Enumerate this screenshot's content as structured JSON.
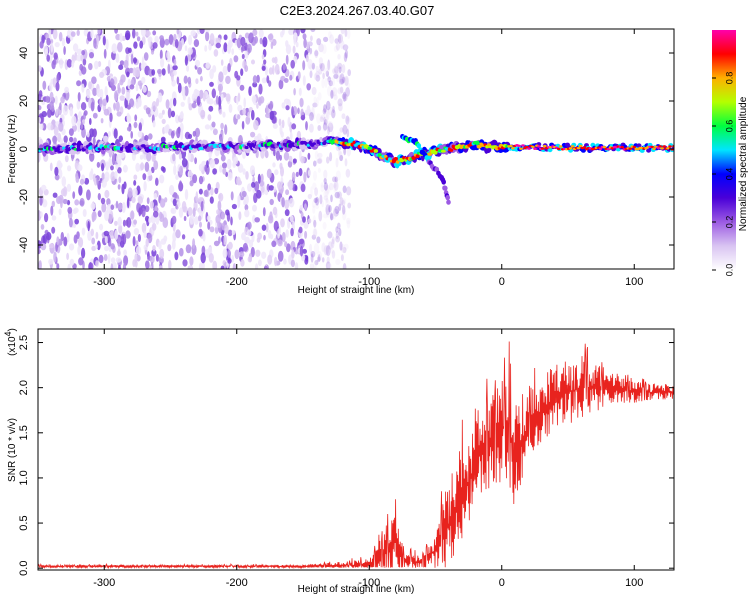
{
  "title": "C2E3.2024.267.03.40.G07",
  "chart_data": [
    {
      "type": "heatmap",
      "xlabel": "Height of straight line (km)",
      "ylabel": "Frequency (Hz)",
      "xlim": [
        -350,
        130
      ],
      "ylim": [
        -50,
        50
      ],
      "x_ticks": [
        "-300",
        "-200",
        "-100",
        "0",
        "100"
      ],
      "x_tick_values": [
        -300,
        -200,
        -100,
        0,
        100
      ],
      "y_ticks": [
        "-40",
        "-20",
        "0",
        "20",
        "40"
      ],
      "y_tick_values": [
        -40,
        -20,
        0,
        20,
        40
      ],
      "ridge": {
        "description_values_in_data_units": true,
        "points": [
          {
            "x": -350,
            "y": 0
          },
          {
            "x": -300,
            "y": 0.5
          },
          {
            "x": -250,
            "y": 0.8
          },
          {
            "x": -200,
            "y": 1
          },
          {
            "x": -150,
            "y": 2
          },
          {
            "x": -130,
            "y": 3
          },
          {
            "x": -110,
            "y": 2
          },
          {
            "x": -100,
            "y": 0
          },
          {
            "x": -90,
            "y": -3
          },
          {
            "x": -80,
            "y": -5
          },
          {
            "x": -70,
            "y": -4
          },
          {
            "x": -60,
            "y": -2
          },
          {
            "x": -50,
            "y": -1
          },
          {
            "x": -40,
            "y": 0
          },
          {
            "x": -30,
            "y": 1
          },
          {
            "x": -20,
            "y": 2
          },
          {
            "x": -10,
            "y": 1
          },
          {
            "x": 0,
            "y": 1
          },
          {
            "x": 50,
            "y": 0.5
          },
          {
            "x": 130,
            "y": 0.5
          }
        ],
        "side_branch": [
          {
            "x": -75,
            "y": 5
          },
          {
            "x": -65,
            "y": 3
          },
          {
            "x": -55,
            "y": -5
          },
          {
            "x": -45,
            "y": -12
          },
          {
            "x": -40,
            "y": -22
          }
        ]
      },
      "noise_region_x": [
        -350,
        -125
      ],
      "colorbar": {
        "label": "Normalized spectral amplitude",
        "ticks": [
          "0.0",
          "0.2",
          "0.4",
          "0.6",
          "0.8"
        ],
        "tick_values": [
          0.0,
          0.2,
          0.4,
          0.6,
          0.8
        ],
        "range": [
          0,
          1
        ],
        "colors": [
          "#ffffff",
          "#d9c4f2",
          "#9c5be3",
          "#4a00d8",
          "#0000ff",
          "#00e5ff",
          "#00ff40",
          "#b4ff00",
          "#ffb000",
          "#ff0000",
          "#ff00aa"
        ]
      }
    },
    {
      "type": "line",
      "xlabel": "Height of straight line (km)",
      "ylabel": "SNR (10 * v/v)",
      "y_multiplier_base": "(x10",
      "y_multiplier_exp": "4",
      "y_multiplier_close": ")",
      "xlim": [
        -350,
        130
      ],
      "ylim": [
        -0.02,
        2.65
      ],
      "x_ticks": [
        "-300",
        "-200",
        "-100",
        "0",
        "100"
      ],
      "x_tick_values": [
        -300,
        -200,
        -100,
        0,
        100
      ],
      "y_ticks": [
        "0.0",
        "0.5",
        "1.0",
        "1.5",
        "2.0",
        "2.5"
      ],
      "y_tick_values": [
        0.0,
        0.5,
        1.0,
        1.5,
        2.0,
        2.5
      ],
      "line_color": "#e8231e",
      "envelope": [
        {
          "x": -350,
          "base": 0.02,
          "amp": 0.02
        },
        {
          "x": -150,
          "base": 0.02,
          "amp": 0.02
        },
        {
          "x": -100,
          "base": 0.04,
          "amp": 0.08
        },
        {
          "x": -90,
          "base": 0.12,
          "amp": 0.3
        },
        {
          "x": -80,
          "base": 0.3,
          "amp": 0.45
        },
        {
          "x": -75,
          "base": 0.08,
          "amp": 0.15
        },
        {
          "x": -60,
          "base": 0.06,
          "amp": 0.1
        },
        {
          "x": -50,
          "base": 0.2,
          "amp": 0.3
        },
        {
          "x": -40,
          "base": 0.5,
          "amp": 0.6
        },
        {
          "x": -30,
          "base": 0.8,
          "amp": 0.7
        },
        {
          "x": -15,
          "base": 1.3,
          "amp": 0.6
        },
        {
          "x": -5,
          "base": 1.5,
          "amp": 0.7
        },
        {
          "x": 5,
          "base": 1.6,
          "amp": 0.8
        },
        {
          "x": 10,
          "base": 1.2,
          "amp": 0.8
        },
        {
          "x": 20,
          "base": 1.6,
          "amp": 0.5
        },
        {
          "x": 40,
          "base": 1.9,
          "amp": 0.45
        },
        {
          "x": 60,
          "base": 2.0,
          "amp": 0.45
        },
        {
          "x": 80,
          "base": 2.0,
          "amp": 0.25
        },
        {
          "x": 100,
          "base": 1.95,
          "amp": 0.15
        },
        {
          "x": 130,
          "base": 1.95,
          "amp": 0.1
        }
      ]
    }
  ]
}
